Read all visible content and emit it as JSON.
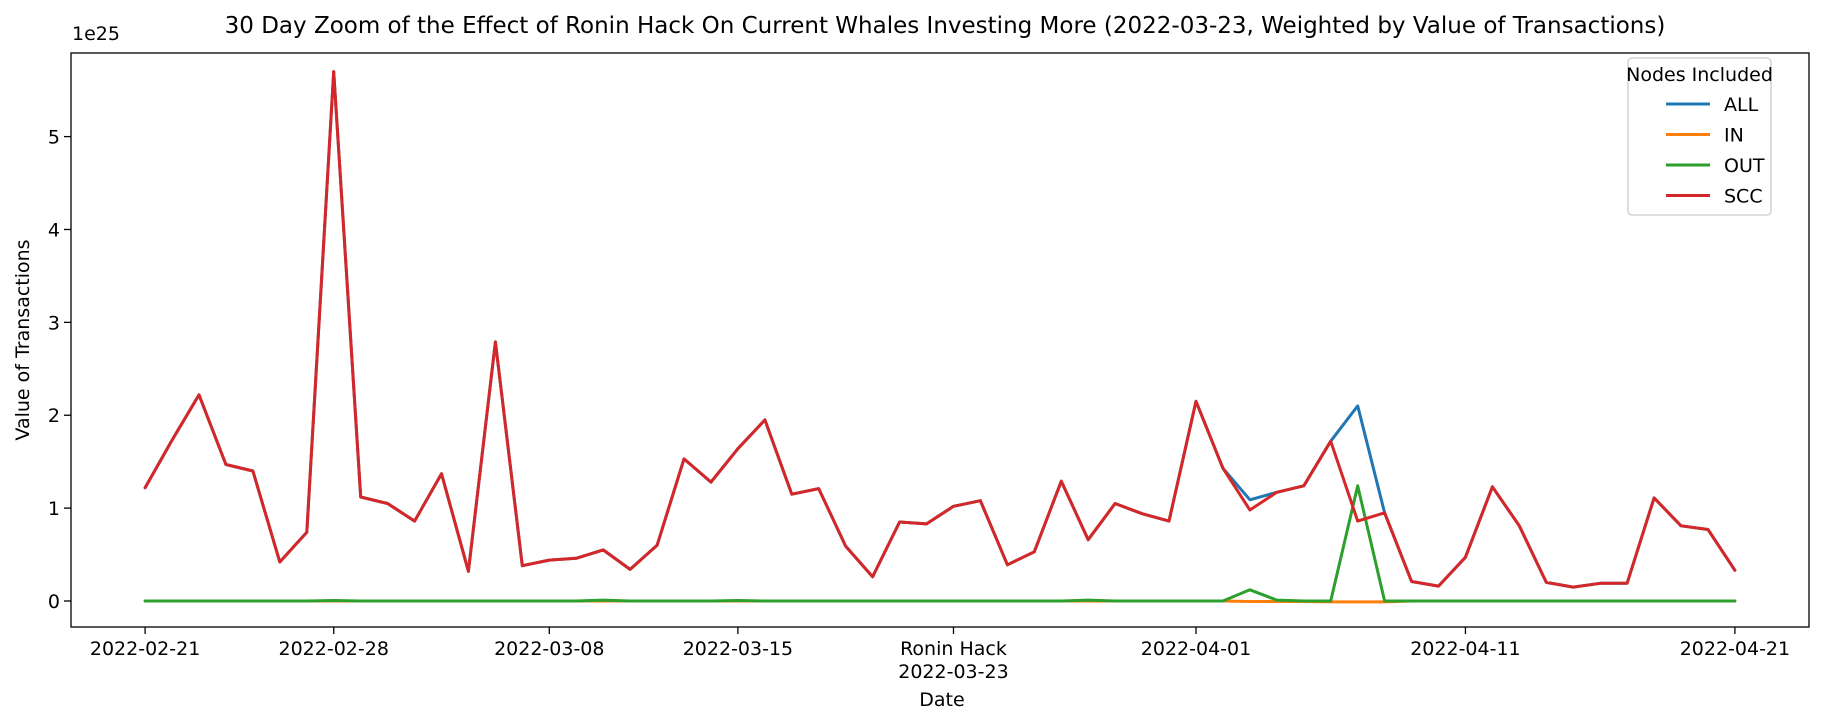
{
  "chart_data": {
    "type": "line",
    "title": "30 Day Zoom of the Effect of Ronin Hack On Current Whales Investing More (2022-03-23, Weighted by Value of Transactions)",
    "xlabel": "Date",
    "ylabel": "Value of Transactions",
    "y_offset_label": "1e25",
    "ylim": [
      -0.28,
      5.9
    ],
    "x_range": [
      "2022-02-18T06:00",
      "2022-04-23T18:00"
    ],
    "x_ticks": [
      {
        "date": "2022-02-21",
        "lines": [
          "2022-02-21"
        ]
      },
      {
        "date": "2022-02-28",
        "lines": [
          "2022-02-28"
        ]
      },
      {
        "date": "2022-03-08",
        "lines": [
          "2022-03-08"
        ]
      },
      {
        "date": "2022-03-15",
        "lines": [
          "2022-03-15"
        ]
      },
      {
        "date": "2022-03-23",
        "lines": [
          "Ronin Hack",
          "2022-03-23"
        ]
      },
      {
        "date": "2022-04-01",
        "lines": [
          "2022-04-01"
        ]
      },
      {
        "date": "2022-04-11",
        "lines": [
          "2022-04-11"
        ]
      },
      {
        "date": "2022-04-21",
        "lines": [
          "2022-04-21"
        ]
      }
    ],
    "y_ticks": [
      0,
      1,
      2,
      3,
      4,
      5
    ],
    "grid": false,
    "legend": {
      "title": "Nodes Included",
      "placement": "top-right"
    },
    "series": [
      {
        "name": "ALL",
        "color": "#1f77b4",
        "points": [
          [
            "2022-02-21",
            1.22
          ],
          [
            "2022-02-22",
            1.73
          ],
          [
            "2022-02-23",
            2.22
          ],
          [
            "2022-02-24",
            1.47
          ],
          [
            "2022-02-25",
            1.4
          ],
          [
            "2022-02-26",
            0.42
          ],
          [
            "2022-02-27",
            0.74
          ],
          [
            "2022-02-28",
            5.7
          ],
          [
            "2022-03-01",
            1.12
          ],
          [
            "2022-03-02",
            1.05
          ],
          [
            "2022-03-03",
            0.86
          ],
          [
            "2022-03-04",
            1.37
          ],
          [
            "2022-03-05",
            0.32
          ],
          [
            "2022-03-06",
            2.79
          ],
          [
            "2022-03-07",
            0.38
          ],
          [
            "2022-03-08",
            0.44
          ],
          [
            "2022-03-09",
            0.46
          ],
          [
            "2022-03-10",
            0.55
          ],
          [
            "2022-03-11",
            0.34
          ],
          [
            "2022-03-12",
            0.6
          ],
          [
            "2022-03-13",
            1.53
          ],
          [
            "2022-03-14",
            1.28
          ],
          [
            "2022-03-15",
            1.64
          ],
          [
            "2022-03-16",
            1.95
          ],
          [
            "2022-03-17",
            1.15
          ],
          [
            "2022-03-18",
            1.21
          ],
          [
            "2022-03-19",
            0.59
          ],
          [
            "2022-03-20",
            0.26
          ],
          [
            "2022-03-21",
            0.85
          ],
          [
            "2022-03-22",
            0.83
          ],
          [
            "2022-03-23",
            1.02
          ],
          [
            "2022-03-24",
            1.08
          ],
          [
            "2022-03-25",
            0.39
          ],
          [
            "2022-03-26",
            0.53
          ],
          [
            "2022-03-27",
            1.29
          ],
          [
            "2022-03-28",
            0.66
          ],
          [
            "2022-03-29",
            1.05
          ],
          [
            "2022-03-30",
            0.94
          ],
          [
            "2022-03-31",
            0.86
          ],
          [
            "2022-04-01",
            2.15
          ],
          [
            "2022-04-02",
            1.43
          ],
          [
            "2022-04-03",
            1.09
          ],
          [
            "2022-04-04",
            1.17
          ],
          [
            "2022-04-05",
            1.24
          ],
          [
            "2022-04-06",
            1.72
          ],
          [
            "2022-04-07",
            2.1
          ],
          [
            "2022-04-08",
            0.95
          ],
          [
            "2022-04-09",
            0.21
          ],
          [
            "2022-04-10",
            0.16
          ],
          [
            "2022-04-11",
            0.47
          ],
          [
            "2022-04-12",
            1.23
          ],
          [
            "2022-04-13",
            0.81
          ],
          [
            "2022-04-14",
            0.2
          ],
          [
            "2022-04-15",
            0.15
          ],
          [
            "2022-04-16",
            0.19
          ],
          [
            "2022-04-17",
            0.19
          ],
          [
            "2022-04-18",
            1.11
          ],
          [
            "2022-04-19",
            0.81
          ],
          [
            "2022-04-20",
            0.77
          ],
          [
            "2022-04-21",
            0.33
          ]
        ]
      },
      {
        "name": "IN",
        "color": "#ff7f0e",
        "points": [
          [
            "2022-02-21",
            0.0
          ],
          [
            "2022-02-22",
            0.0
          ],
          [
            "2022-02-23",
            0.0
          ],
          [
            "2022-02-24",
            0.0
          ],
          [
            "2022-02-25",
            0.0
          ],
          [
            "2022-02-26",
            0.0
          ],
          [
            "2022-02-27",
            0.0
          ],
          [
            "2022-02-28",
            0.0
          ],
          [
            "2022-03-01",
            0.0
          ],
          [
            "2022-03-02",
            0.0
          ],
          [
            "2022-03-03",
            0.0
          ],
          [
            "2022-03-04",
            0.0
          ],
          [
            "2022-03-05",
            0.0
          ],
          [
            "2022-03-06",
            0.0
          ],
          [
            "2022-03-07",
            0.0
          ],
          [
            "2022-03-08",
            0.0
          ],
          [
            "2022-03-09",
            0.0
          ],
          [
            "2022-03-10",
            0.0
          ],
          [
            "2022-03-11",
            0.0
          ],
          [
            "2022-03-12",
            0.0
          ],
          [
            "2022-03-13",
            0.0
          ],
          [
            "2022-03-14",
            0.0
          ],
          [
            "2022-03-15",
            0.0
          ],
          [
            "2022-03-16",
            0.0
          ],
          [
            "2022-03-17",
            0.0
          ],
          [
            "2022-03-18",
            0.0
          ],
          [
            "2022-03-19",
            0.0
          ],
          [
            "2022-03-20",
            0.0
          ],
          [
            "2022-03-21",
            0.0
          ],
          [
            "2022-03-22",
            0.0
          ],
          [
            "2022-03-23",
            0.0
          ],
          [
            "2022-03-24",
            0.0
          ],
          [
            "2022-03-25",
            0.0
          ],
          [
            "2022-03-26",
            0.0
          ],
          [
            "2022-03-27",
            0.0
          ],
          [
            "2022-03-28",
            0.0
          ],
          [
            "2022-03-29",
            0.0
          ],
          [
            "2022-03-30",
            0.0
          ],
          [
            "2022-03-31",
            0.0
          ],
          [
            "2022-04-01",
            0.0
          ],
          [
            "2022-04-02",
            0.0
          ],
          [
            "2022-04-03",
            -0.005
          ],
          [
            "2022-04-04",
            -0.005
          ],
          [
            "2022-04-05",
            -0.005
          ],
          [
            "2022-04-06",
            -0.01
          ],
          [
            "2022-04-07",
            -0.01
          ],
          [
            "2022-04-08",
            -0.01
          ],
          [
            "2022-04-09",
            0.0
          ],
          [
            "2022-04-10",
            0.0
          ],
          [
            "2022-04-11",
            0.0
          ],
          [
            "2022-04-12",
            0.0
          ],
          [
            "2022-04-13",
            0.0
          ],
          [
            "2022-04-14",
            0.0
          ],
          [
            "2022-04-15",
            0.0
          ],
          [
            "2022-04-16",
            0.0
          ],
          [
            "2022-04-17",
            0.0
          ],
          [
            "2022-04-18",
            0.0
          ],
          [
            "2022-04-19",
            0.0
          ],
          [
            "2022-04-20",
            0.0
          ],
          [
            "2022-04-21",
            0.0
          ]
        ]
      },
      {
        "name": "OUT",
        "color": "#2ca02c",
        "points": [
          [
            "2022-02-21",
            0.0
          ],
          [
            "2022-02-22",
            0.0
          ],
          [
            "2022-02-23",
            0.0
          ],
          [
            "2022-02-24",
            0.0
          ],
          [
            "2022-02-25",
            0.0
          ],
          [
            "2022-02-26",
            0.0
          ],
          [
            "2022-02-27",
            0.0
          ],
          [
            "2022-02-28",
            0.005
          ],
          [
            "2022-03-01",
            0.0
          ],
          [
            "2022-03-02",
            0.0
          ],
          [
            "2022-03-03",
            0.0
          ],
          [
            "2022-03-04",
            0.0
          ],
          [
            "2022-03-05",
            0.0
          ],
          [
            "2022-03-06",
            0.0
          ],
          [
            "2022-03-07",
            0.0
          ],
          [
            "2022-03-08",
            0.0
          ],
          [
            "2022-03-09",
            0.0
          ],
          [
            "2022-03-10",
            0.01
          ],
          [
            "2022-03-11",
            0.0
          ],
          [
            "2022-03-12",
            0.0
          ],
          [
            "2022-03-13",
            0.0
          ],
          [
            "2022-03-14",
            0.0
          ],
          [
            "2022-03-15",
            0.005
          ],
          [
            "2022-03-16",
            0.0
          ],
          [
            "2022-03-17",
            0.0
          ],
          [
            "2022-03-18",
            0.0
          ],
          [
            "2022-03-19",
            0.0
          ],
          [
            "2022-03-20",
            0.0
          ],
          [
            "2022-03-21",
            0.0
          ],
          [
            "2022-03-22",
            0.0
          ],
          [
            "2022-03-23",
            0.0
          ],
          [
            "2022-03-24",
            0.0
          ],
          [
            "2022-03-25",
            0.0
          ],
          [
            "2022-03-26",
            0.0
          ],
          [
            "2022-03-27",
            0.0
          ],
          [
            "2022-03-28",
            0.01
          ],
          [
            "2022-03-29",
            0.0
          ],
          [
            "2022-03-30",
            0.0
          ],
          [
            "2022-03-31",
            0.0
          ],
          [
            "2022-04-01",
            0.0
          ],
          [
            "2022-04-02",
            0.0
          ],
          [
            "2022-04-03",
            0.12
          ],
          [
            "2022-04-04",
            0.01
          ],
          [
            "2022-04-05",
            0.0
          ],
          [
            "2022-04-06",
            0.0
          ],
          [
            "2022-04-07",
            1.24
          ],
          [
            "2022-04-08",
            0.0
          ],
          [
            "2022-04-09",
            0.0
          ],
          [
            "2022-04-10",
            0.0
          ],
          [
            "2022-04-11",
            0.0
          ],
          [
            "2022-04-12",
            0.0
          ],
          [
            "2022-04-13",
            0.0
          ],
          [
            "2022-04-14",
            0.0
          ],
          [
            "2022-04-15",
            0.0
          ],
          [
            "2022-04-16",
            0.0
          ],
          [
            "2022-04-17",
            0.0
          ],
          [
            "2022-04-18",
            0.0
          ],
          [
            "2022-04-19",
            0.0
          ],
          [
            "2022-04-20",
            0.0
          ],
          [
            "2022-04-21",
            0.0
          ]
        ]
      },
      {
        "name": "SCC",
        "color": "#d62728",
        "points": [
          [
            "2022-02-21",
            1.22
          ],
          [
            "2022-02-22",
            1.73
          ],
          [
            "2022-02-23",
            2.22
          ],
          [
            "2022-02-24",
            1.47
          ],
          [
            "2022-02-25",
            1.4
          ],
          [
            "2022-02-26",
            0.42
          ],
          [
            "2022-02-27",
            0.74
          ],
          [
            "2022-02-28",
            5.7
          ],
          [
            "2022-03-01",
            1.12
          ],
          [
            "2022-03-02",
            1.05
          ],
          [
            "2022-03-03",
            0.86
          ],
          [
            "2022-03-04",
            1.37
          ],
          [
            "2022-03-05",
            0.32
          ],
          [
            "2022-03-06",
            2.79
          ],
          [
            "2022-03-07",
            0.38
          ],
          [
            "2022-03-08",
            0.44
          ],
          [
            "2022-03-09",
            0.46
          ],
          [
            "2022-03-10",
            0.55
          ],
          [
            "2022-03-11",
            0.34
          ],
          [
            "2022-03-12",
            0.6
          ],
          [
            "2022-03-13",
            1.53
          ],
          [
            "2022-03-14",
            1.28
          ],
          [
            "2022-03-15",
            1.64
          ],
          [
            "2022-03-16",
            1.95
          ],
          [
            "2022-03-17",
            1.15
          ],
          [
            "2022-03-18",
            1.21
          ],
          [
            "2022-03-19",
            0.59
          ],
          [
            "2022-03-20",
            0.26
          ],
          [
            "2022-03-21",
            0.85
          ],
          [
            "2022-03-22",
            0.83
          ],
          [
            "2022-03-23",
            1.02
          ],
          [
            "2022-03-24",
            1.08
          ],
          [
            "2022-03-25",
            0.39
          ],
          [
            "2022-03-26",
            0.53
          ],
          [
            "2022-03-27",
            1.29
          ],
          [
            "2022-03-28",
            0.66
          ],
          [
            "2022-03-29",
            1.05
          ],
          [
            "2022-03-30",
            0.94
          ],
          [
            "2022-03-31",
            0.86
          ],
          [
            "2022-04-01",
            2.15
          ],
          [
            "2022-04-02",
            1.43
          ],
          [
            "2022-04-03",
            0.98
          ],
          [
            "2022-04-04",
            1.17
          ],
          [
            "2022-04-05",
            1.24
          ],
          [
            "2022-04-06",
            1.72
          ],
          [
            "2022-04-07",
            0.86
          ],
          [
            "2022-04-08",
            0.95
          ],
          [
            "2022-04-09",
            0.21
          ],
          [
            "2022-04-10",
            0.16
          ],
          [
            "2022-04-11",
            0.47
          ],
          [
            "2022-04-12",
            1.23
          ],
          [
            "2022-04-13",
            0.81
          ],
          [
            "2022-04-14",
            0.2
          ],
          [
            "2022-04-15",
            0.15
          ],
          [
            "2022-04-16",
            0.19
          ],
          [
            "2022-04-17",
            0.19
          ],
          [
            "2022-04-18",
            1.11
          ],
          [
            "2022-04-19",
            0.81
          ],
          [
            "2022-04-20",
            0.77
          ],
          [
            "2022-04-21",
            0.33
          ]
        ]
      }
    ]
  }
}
